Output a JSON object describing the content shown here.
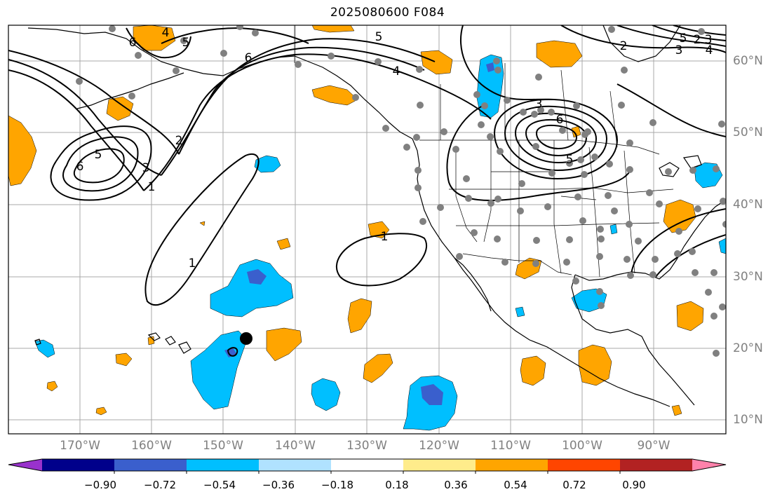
{
  "title": "2025080600 F084",
  "lon_labels": [
    "170°W",
    "160°W",
    "150°W",
    "140°W",
    "130°W",
    "120°W",
    "110°W",
    "100°W",
    "90°W"
  ],
  "lat_labels": [
    "60°N",
    "50°N",
    "40°N",
    "30°N",
    "20°N",
    "10°N"
  ],
  "contour_labels": [
    "1",
    "2",
    "3",
    "4",
    "5",
    "6",
    "1",
    "2",
    "3",
    "4",
    "5",
    "6",
    "1",
    "3",
    "5",
    "6",
    "2",
    "3",
    "4",
    "5",
    "5",
    "6"
  ],
  "colorbar": {
    "ticks": [
      "−0.90",
      "−0.72",
      "−0.54",
      "−0.36",
      "−0.18",
      "0.18",
      "0.36",
      "0.54",
      "0.72",
      "0.90"
    ],
    "colors": [
      "#9932cc",
      "#00008b",
      "#3a5fcd",
      "#00bfff",
      "#b0e2ff",
      "#ffffff",
      "#ffec8b",
      "#ffa500",
      "#ff4500",
      "#b22222",
      "#ff82ab"
    ]
  },
  "colors": {
    "positive": "#ffa500",
    "negative": "#00bfff",
    "strong_negative": "#3a5fcd",
    "station_dot": "#808080",
    "grid": "#a9a9a9"
  }
}
